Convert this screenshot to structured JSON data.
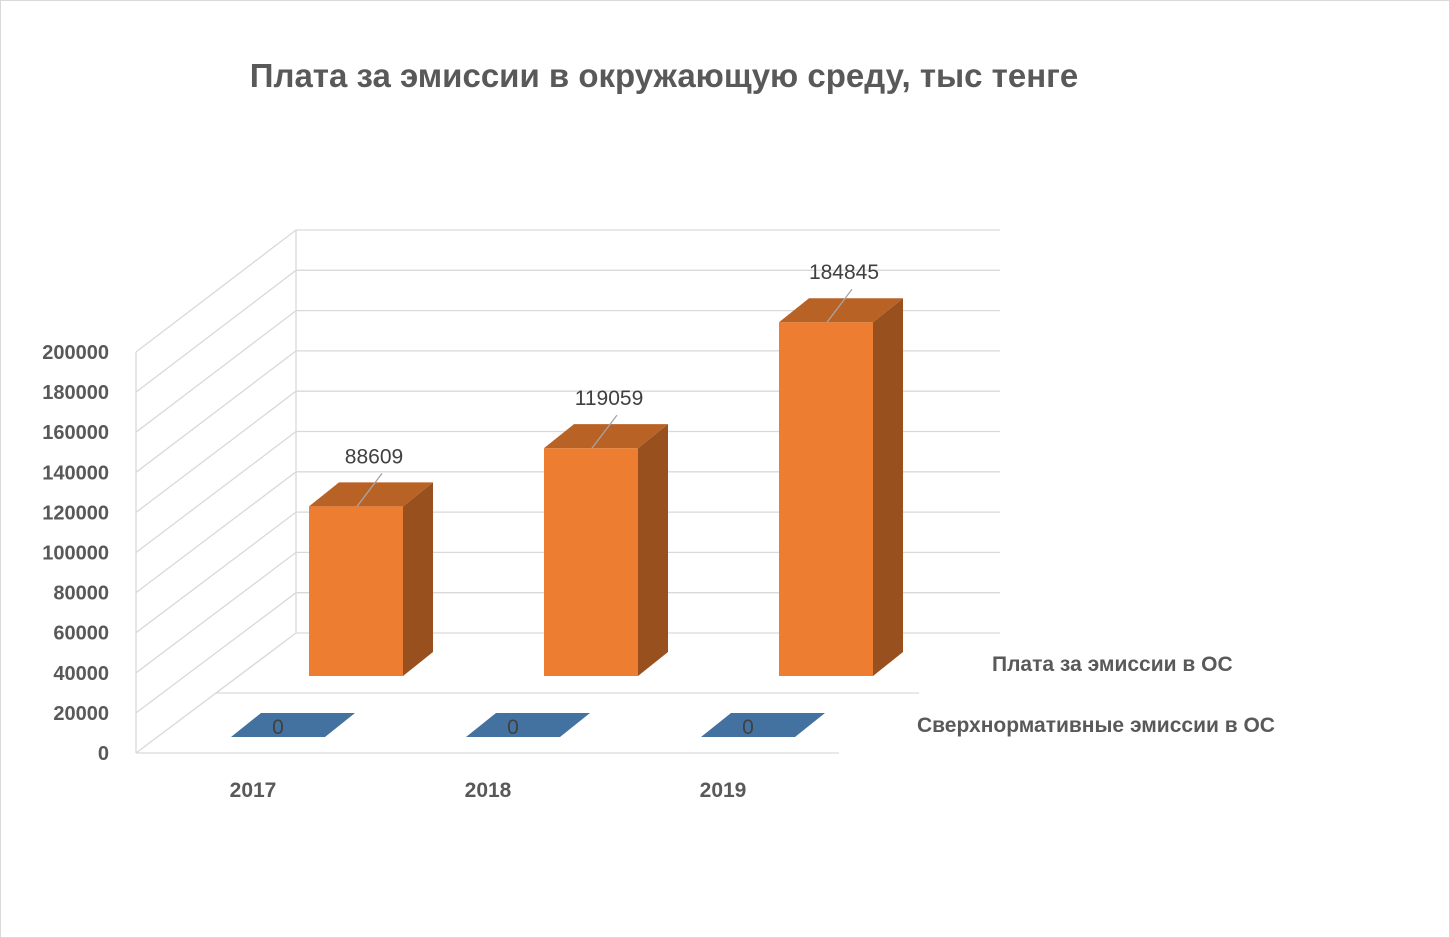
{
  "chart_data": {
    "type": "bar",
    "title": "Плата за эмиссии в окружающую среду, тыс тенге",
    "categories": [
      "2017",
      "2018",
      "2019"
    ],
    "series": [
      {
        "name": "Сверхнормативные эмиссии в ОС",
        "values": [
          0,
          0,
          0
        ],
        "data_labels": [
          "0",
          "0",
          "0"
        ],
        "color": "#4472a0"
      },
      {
        "name": "Плата за эмиссии в ОС",
        "values": [
          88609,
          119059,
          184845
        ],
        "data_labels": [
          "88609",
          "119059",
          "184845"
        ],
        "color": "#ed7d31"
      }
    ],
    "yticks": [
      "0",
      "20000",
      "40000",
      "60000",
      "80000",
      "100000",
      "120000",
      "140000",
      "160000",
      "180000",
      "200000"
    ],
    "ylim": [
      0,
      200000
    ],
    "style": "3d-column",
    "grid": true
  }
}
